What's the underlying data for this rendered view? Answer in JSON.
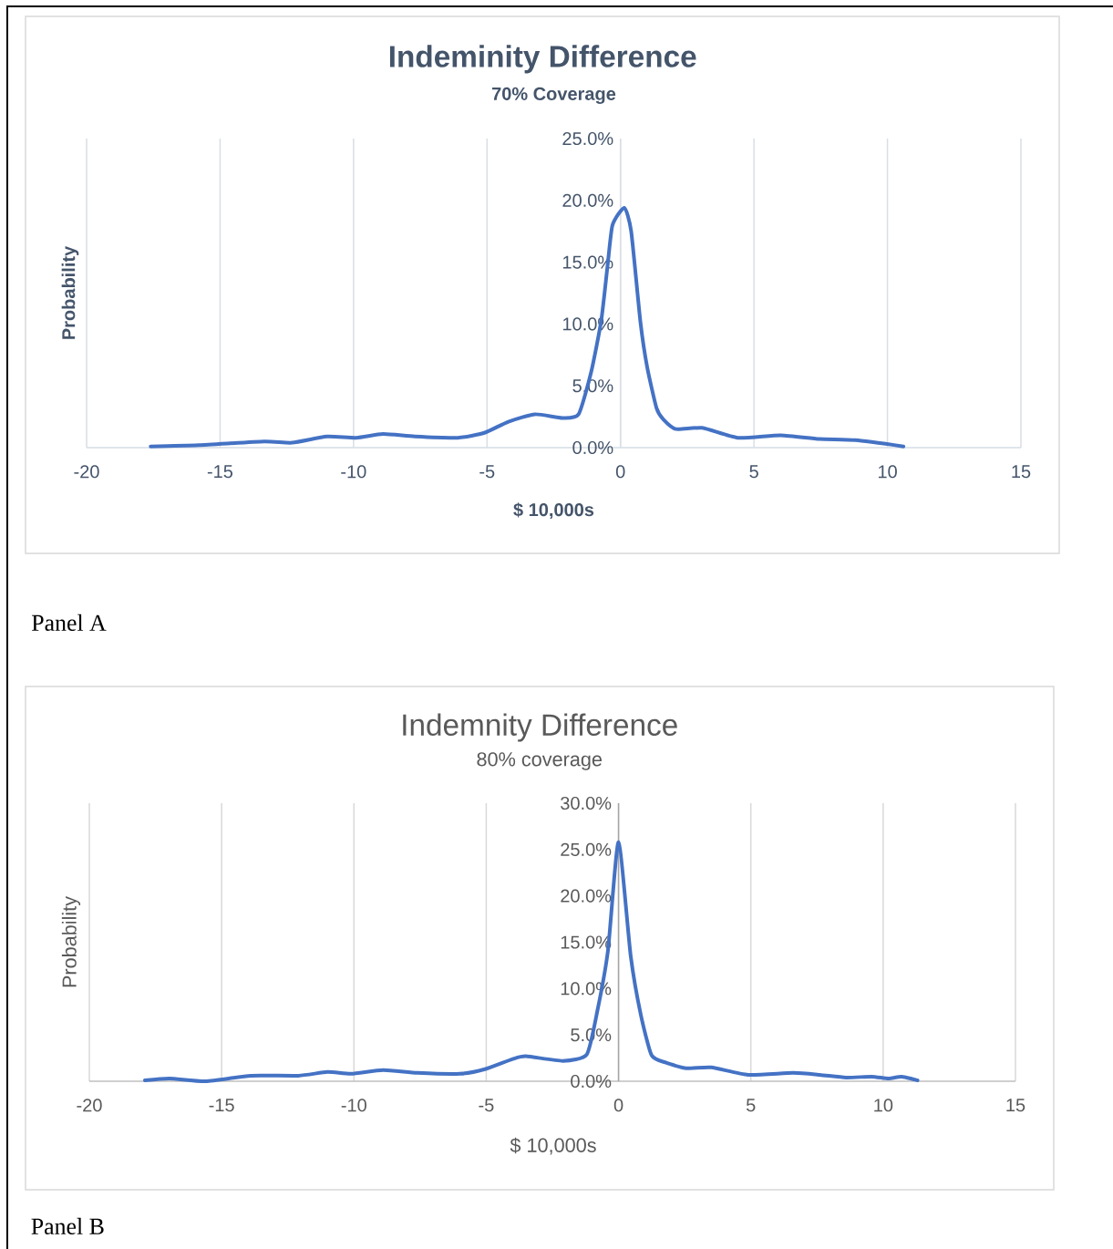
{
  "chart_data": [
    {
      "type": "line",
      "title": "Indeminity Difference",
      "subtitle": "70% Coverage",
      "xlabel": "$ 10,000s",
      "ylabel": "Probability",
      "series": [
        {
          "color": "#4472c4",
          "x": [
            -17.6,
            -15.8,
            -13.35,
            -12.3,
            -11,
            -9.9,
            -8.9,
            -7.7,
            -6.1,
            -5.1,
            -4.2,
            -3.2,
            -2.18,
            -1.57,
            -1.1,
            -0.72,
            -0.48,
            -0.3,
            0.14,
            0.4,
            0.75,
            1.0,
            1.35,
            1.6,
            2.08,
            3.06,
            4.4,
            6.0,
            7.45,
            8.8,
            10.6
          ],
          "values": [
            0.1,
            0.2,
            0.5,
            0.4,
            0.9,
            0.8,
            1.1,
            0.9,
            0.8,
            1.2,
            2.1,
            2.7,
            2.4,
            2.7,
            6.1,
            10.3,
            14.8,
            18.0,
            19.4,
            17.5,
            10.1,
            6.5,
            3.2,
            2.3,
            1.5,
            1.6,
            0.8,
            1.0,
            0.7,
            0.6,
            0.1
          ]
        }
      ],
      "xlim": [
        -20,
        15
      ],
      "xticks": [
        -20,
        -15,
        -10,
        -5,
        0,
        5,
        10,
        15
      ],
      "ylim": [
        0,
        25
      ],
      "yticks": [
        {
          "value": 0,
          "label": "0.0%"
        },
        {
          "value": 5,
          "label": "5.0%"
        },
        {
          "value": 10,
          "label": "10.0%"
        },
        {
          "value": 15,
          "label": "15.0%"
        },
        {
          "value": 20,
          "label": "20.0%"
        },
        {
          "value": 25,
          "label": "25.0%"
        }
      ],
      "grid": "x",
      "annotations": [
        "Panel A"
      ]
    },
    {
      "type": "line",
      "title": "Indemnity Difference",
      "subtitle": "80% coverage",
      "xlabel": "$ 10,000s",
      "ylabel": "Probability",
      "series": [
        {
          "color": "#4472c4",
          "x": [
            -17.9,
            -16.97,
            -15.6,
            -13.9,
            -12.1,
            -11.0,
            -10.1,
            -8.9,
            -7.6,
            -6.0,
            -5.05,
            -4.0,
            -3.5,
            -2.1,
            -1.2,
            -0.8,
            -0.4,
            0.0,
            0.46,
            0.84,
            1.25,
            1.8,
            2.56,
            3.5,
            4.9,
            6.6,
            7.6,
            8.6,
            9.56,
            10.2,
            10.7,
            11.3
          ],
          "values": [
            0.1,
            0.3,
            0.0,
            0.6,
            0.6,
            1.0,
            0.8,
            1.2,
            0.9,
            0.8,
            1.3,
            2.4,
            2.7,
            2.2,
            2.9,
            7.6,
            14.1,
            25.8,
            13.5,
            7.2,
            2.8,
            2.0,
            1.4,
            1.5,
            0.7,
            0.9,
            0.7,
            0.4,
            0.5,
            0.3,
            0.5,
            0.1
          ]
        }
      ],
      "xlim": [
        -20,
        15
      ],
      "xticks": [
        -20,
        -15,
        -10,
        -5,
        0,
        5,
        10,
        15
      ],
      "ylim": [
        0,
        30
      ],
      "yticks": [
        {
          "value": 0,
          "label": "0.0%"
        },
        {
          "value": 5,
          "label": "5.0%"
        },
        {
          "value": 10,
          "label": "10.0%"
        },
        {
          "value": 15,
          "label": "15.0%"
        },
        {
          "value": 20,
          "label": "20.0%"
        },
        {
          "value": 25,
          "label": "25.0%"
        },
        {
          "value": 30,
          "label": "30.0%"
        }
      ],
      "grid": "x",
      "annotations": [
        "Panel B"
      ]
    }
  ]
}
